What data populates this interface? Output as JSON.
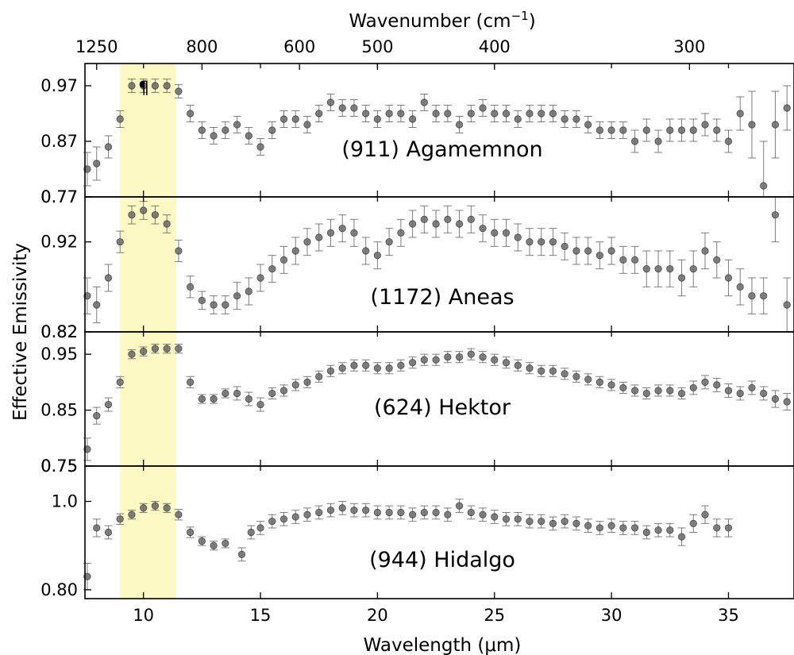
{
  "chart_data": {
    "type": "scatter",
    "xlabel": "Wavelength (μm)",
    "ylabel": "Effective Emissivity",
    "top_axis": {
      "label": "Wavenumber (cm",
      "label_sup": "−1",
      "label_end": ")",
      "ticks": [
        1250,
        800,
        600,
        500,
        400,
        300
      ]
    },
    "xlim": [
      7.5,
      37.8
    ],
    "x_ticks": [
      10,
      15,
      20,
      25,
      30,
      35
    ],
    "highlight_band": {
      "x_range": [
        9.0,
        11.4
      ],
      "color": "#fbf8c4"
    },
    "marker": "¶",
    "grid": false,
    "panels": [
      {
        "name": "(911) Agamemnon",
        "ylim": [
          0.77,
          1.01
        ],
        "y_ticks": [
          0.97,
          0.87,
          0.77
        ],
        "x": [
          7.6,
          8.0,
          8.5,
          9.0,
          9.5,
          10.0,
          10.5,
          11.0,
          11.5,
          12.0,
          12.5,
          13.0,
          13.5,
          14.0,
          14.5,
          15.0,
          15.5,
          16.0,
          16.5,
          17.0,
          17.5,
          18.0,
          18.5,
          19.0,
          19.5,
          20.0,
          20.5,
          21.0,
          21.5,
          22.0,
          22.5,
          23.0,
          23.5,
          24.0,
          24.5,
          25.0,
          25.5,
          26.0,
          26.5,
          27.0,
          27.5,
          28.0,
          28.5,
          29.0,
          29.5,
          30.0,
          30.5,
          31.0,
          31.5,
          32.0,
          32.5,
          33.0,
          33.5,
          34.0,
          34.5,
          35.0,
          35.5,
          36.0,
          36.5,
          37.0,
          37.5
        ],
        "y": [
          0.82,
          0.83,
          0.86,
          0.91,
          0.97,
          0.97,
          0.97,
          0.97,
          0.96,
          0.92,
          0.89,
          0.88,
          0.89,
          0.9,
          0.88,
          0.86,
          0.89,
          0.91,
          0.91,
          0.9,
          0.92,
          0.94,
          0.93,
          0.93,
          0.92,
          0.91,
          0.92,
          0.92,
          0.91,
          0.94,
          0.92,
          0.92,
          0.9,
          0.92,
          0.93,
          0.92,
          0.92,
          0.91,
          0.92,
          0.92,
          0.92,
          0.91,
          0.91,
          0.9,
          0.89,
          0.89,
          0.89,
          0.87,
          0.89,
          0.87,
          0.89,
          0.89,
          0.89,
          0.9,
          0.89,
          0.87,
          0.92,
          0.9,
          0.79,
          0.9,
          0.93
        ],
        "err": [
          0.03,
          0.03,
          0.02,
          0.015,
          0.012,
          0.012,
          0.012,
          0.012,
          0.012,
          0.015,
          0.015,
          0.015,
          0.015,
          0.015,
          0.015,
          0.015,
          0.015,
          0.015,
          0.015,
          0.015,
          0.015,
          0.015,
          0.015,
          0.015,
          0.015,
          0.015,
          0.015,
          0.015,
          0.015,
          0.015,
          0.015,
          0.015,
          0.015,
          0.015,
          0.015,
          0.015,
          0.015,
          0.015,
          0.015,
          0.015,
          0.015,
          0.015,
          0.015,
          0.015,
          0.015,
          0.015,
          0.015,
          0.02,
          0.02,
          0.02,
          0.02,
          0.02,
          0.02,
          0.02,
          0.02,
          0.02,
          0.03,
          0.06,
          0.08,
          0.06,
          0.04
        ]
      },
      {
        "name": "(1172) Aneas",
        "ylim": [
          0.82,
          0.97
        ],
        "y_ticks": [
          0.92,
          0.82
        ],
        "extra_ticks": [
          {
            "value": 0.97,
            "label": "0.77"
          }
        ],
        "x": [
          7.6,
          8.0,
          8.5,
          9.0,
          9.5,
          10.0,
          10.5,
          11.0,
          11.5,
          12.0,
          12.5,
          13.0,
          13.5,
          14.0,
          14.5,
          15.0,
          15.5,
          16.0,
          16.5,
          17.0,
          17.5,
          18.0,
          18.5,
          19.0,
          19.5,
          20.0,
          20.5,
          21.0,
          21.5,
          22.0,
          22.5,
          23.0,
          23.5,
          24.0,
          24.5,
          25.0,
          25.5,
          26.0,
          26.5,
          27.0,
          27.5,
          28.0,
          28.5,
          29.0,
          29.5,
          30.0,
          30.5,
          31.0,
          31.5,
          32.0,
          32.5,
          33.0,
          33.5,
          34.0,
          34.5,
          35.0,
          35.5,
          36.0,
          36.5,
          37.0,
          37.5
        ],
        "y": [
          0.86,
          0.85,
          0.88,
          0.92,
          0.95,
          0.955,
          0.95,
          0.94,
          0.91,
          0.87,
          0.855,
          0.85,
          0.85,
          0.86,
          0.865,
          0.88,
          0.89,
          0.9,
          0.91,
          0.92,
          0.925,
          0.93,
          0.935,
          0.93,
          0.91,
          0.905,
          0.92,
          0.93,
          0.94,
          0.945,
          0.94,
          0.945,
          0.94,
          0.945,
          0.935,
          0.93,
          0.93,
          0.925,
          0.92,
          0.92,
          0.92,
          0.915,
          0.91,
          0.91,
          0.905,
          0.91,
          0.9,
          0.9,
          0.89,
          0.89,
          0.89,
          0.88,
          0.89,
          0.91,
          0.9,
          0.88,
          0.87,
          0.86,
          0.86,
          0.95,
          0.85
        ],
        "err": [
          0.02,
          0.02,
          0.015,
          0.012,
          0.01,
          0.01,
          0.01,
          0.01,
          0.012,
          0.012,
          0.01,
          0.01,
          0.01,
          0.015,
          0.015,
          0.015,
          0.015,
          0.015,
          0.015,
          0.015,
          0.015,
          0.015,
          0.015,
          0.015,
          0.015,
          0.015,
          0.015,
          0.015,
          0.015,
          0.015,
          0.015,
          0.015,
          0.015,
          0.015,
          0.015,
          0.015,
          0.015,
          0.015,
          0.015,
          0.015,
          0.015,
          0.015,
          0.015,
          0.015,
          0.015,
          0.015,
          0.015,
          0.015,
          0.02,
          0.02,
          0.02,
          0.02,
          0.02,
          0.02,
          0.02,
          0.02,
          0.02,
          0.02,
          0.02,
          0.03,
          0.03
        ]
      },
      {
        "name": "(624) Hektor",
        "ylim": [
          0.75,
          0.99
        ],
        "y_ticks": [
          0.95,
          0.85,
          0.75
        ],
        "extra_ticks": [
          {
            "value": 0.99,
            "label": "0.82"
          }
        ],
        "x": [
          7.6,
          8.0,
          8.5,
          9.0,
          9.5,
          10.0,
          10.5,
          11.0,
          11.5,
          12.0,
          12.5,
          13.0,
          13.5,
          14.0,
          14.5,
          15.0,
          15.5,
          16.0,
          16.5,
          17.0,
          17.5,
          18.0,
          18.5,
          19.0,
          19.5,
          20.0,
          20.5,
          21.0,
          21.5,
          22.0,
          22.5,
          23.0,
          23.5,
          24.0,
          24.5,
          25.0,
          25.5,
          26.0,
          26.5,
          27.0,
          27.5,
          28.0,
          28.5,
          29.0,
          29.5,
          30.0,
          30.5,
          31.0,
          31.5,
          32.0,
          32.5,
          33.0,
          33.5,
          34.0,
          34.5,
          35.0,
          35.5,
          36.0,
          36.5,
          37.0,
          37.5
        ],
        "y": [
          0.78,
          0.84,
          0.86,
          0.9,
          0.95,
          0.955,
          0.96,
          0.96,
          0.96,
          0.9,
          0.87,
          0.87,
          0.88,
          0.88,
          0.87,
          0.86,
          0.88,
          0.885,
          0.895,
          0.9,
          0.91,
          0.92,
          0.925,
          0.93,
          0.93,
          0.925,
          0.925,
          0.93,
          0.935,
          0.94,
          0.94,
          0.945,
          0.945,
          0.95,
          0.945,
          0.94,
          0.935,
          0.93,
          0.925,
          0.92,
          0.92,
          0.915,
          0.91,
          0.905,
          0.9,
          0.895,
          0.89,
          0.885,
          0.88,
          0.885,
          0.885,
          0.88,
          0.89,
          0.9,
          0.895,
          0.885,
          0.88,
          0.89,
          0.88,
          0.87,
          0.865
        ],
        "err": [
          0.02,
          0.015,
          0.012,
          0.01,
          0.008,
          0.008,
          0.008,
          0.008,
          0.008,
          0.01,
          0.008,
          0.008,
          0.008,
          0.012,
          0.012,
          0.012,
          0.01,
          0.01,
          0.01,
          0.01,
          0.01,
          0.01,
          0.01,
          0.01,
          0.01,
          0.01,
          0.01,
          0.01,
          0.01,
          0.01,
          0.01,
          0.01,
          0.01,
          0.01,
          0.01,
          0.01,
          0.01,
          0.01,
          0.01,
          0.01,
          0.01,
          0.01,
          0.01,
          0.01,
          0.01,
          0.01,
          0.01,
          0.01,
          0.01,
          0.01,
          0.01,
          0.01,
          0.012,
          0.012,
          0.012,
          0.012,
          0.012,
          0.012,
          0.012,
          0.015,
          0.015
        ]
      },
      {
        "name": "(944) Hidalgo",
        "ylim": [
          0.78,
          1.08
        ],
        "y_ticks": [
          1.0,
          0.8
        ],
        "extra_ticks": [
          {
            "value": 1.08,
            "label": "0.75"
          }
        ],
        "x": [
          7.6,
          8.0,
          8.5,
          9.0,
          9.5,
          10.0,
          10.5,
          11.0,
          11.5,
          12.0,
          12.5,
          13.0,
          13.5,
          14.2,
          14.6,
          15.0,
          15.5,
          16.0,
          16.5,
          17.0,
          17.5,
          18.0,
          18.5,
          19.0,
          19.5,
          20.0,
          20.5,
          21.0,
          21.5,
          22.0,
          22.5,
          23.0,
          23.5,
          24.0,
          24.5,
          25.0,
          25.5,
          26.0,
          26.5,
          27.0,
          27.5,
          28.0,
          28.5,
          29.0,
          29.5,
          30.0,
          30.5,
          31.0,
          31.5,
          32.0,
          32.5,
          33.0,
          33.5,
          34.0,
          34.5,
          35.0
        ],
        "y": [
          0.83,
          0.94,
          0.93,
          0.96,
          0.97,
          0.985,
          0.99,
          0.985,
          0.97,
          0.93,
          0.91,
          0.9,
          0.905,
          0.88,
          0.93,
          0.94,
          0.955,
          0.96,
          0.965,
          0.97,
          0.975,
          0.98,
          0.985,
          0.98,
          0.98,
          0.975,
          0.975,
          0.975,
          0.97,
          0.975,
          0.975,
          0.97,
          0.99,
          0.975,
          0.97,
          0.965,
          0.96,
          0.96,
          0.955,
          0.955,
          0.95,
          0.955,
          0.95,
          0.945,
          0.94,
          0.945,
          0.94,
          0.94,
          0.93,
          0.935,
          0.935,
          0.92,
          0.95,
          0.97,
          0.94,
          0.94
        ],
        "err": [
          0.03,
          0.02,
          0.015,
          0.012,
          0.01,
          0.01,
          0.01,
          0.01,
          0.012,
          0.012,
          0.01,
          0.01,
          0.01,
          0.015,
          0.015,
          0.015,
          0.015,
          0.015,
          0.015,
          0.015,
          0.015,
          0.015,
          0.015,
          0.015,
          0.015,
          0.015,
          0.015,
          0.015,
          0.015,
          0.015,
          0.015,
          0.015,
          0.015,
          0.015,
          0.015,
          0.015,
          0.015,
          0.015,
          0.015,
          0.015,
          0.015,
          0.015,
          0.015,
          0.015,
          0.015,
          0.015,
          0.015,
          0.015,
          0.015,
          0.015,
          0.015,
          0.02,
          0.02,
          0.02,
          0.02,
          0.02
        ]
      }
    ]
  }
}
